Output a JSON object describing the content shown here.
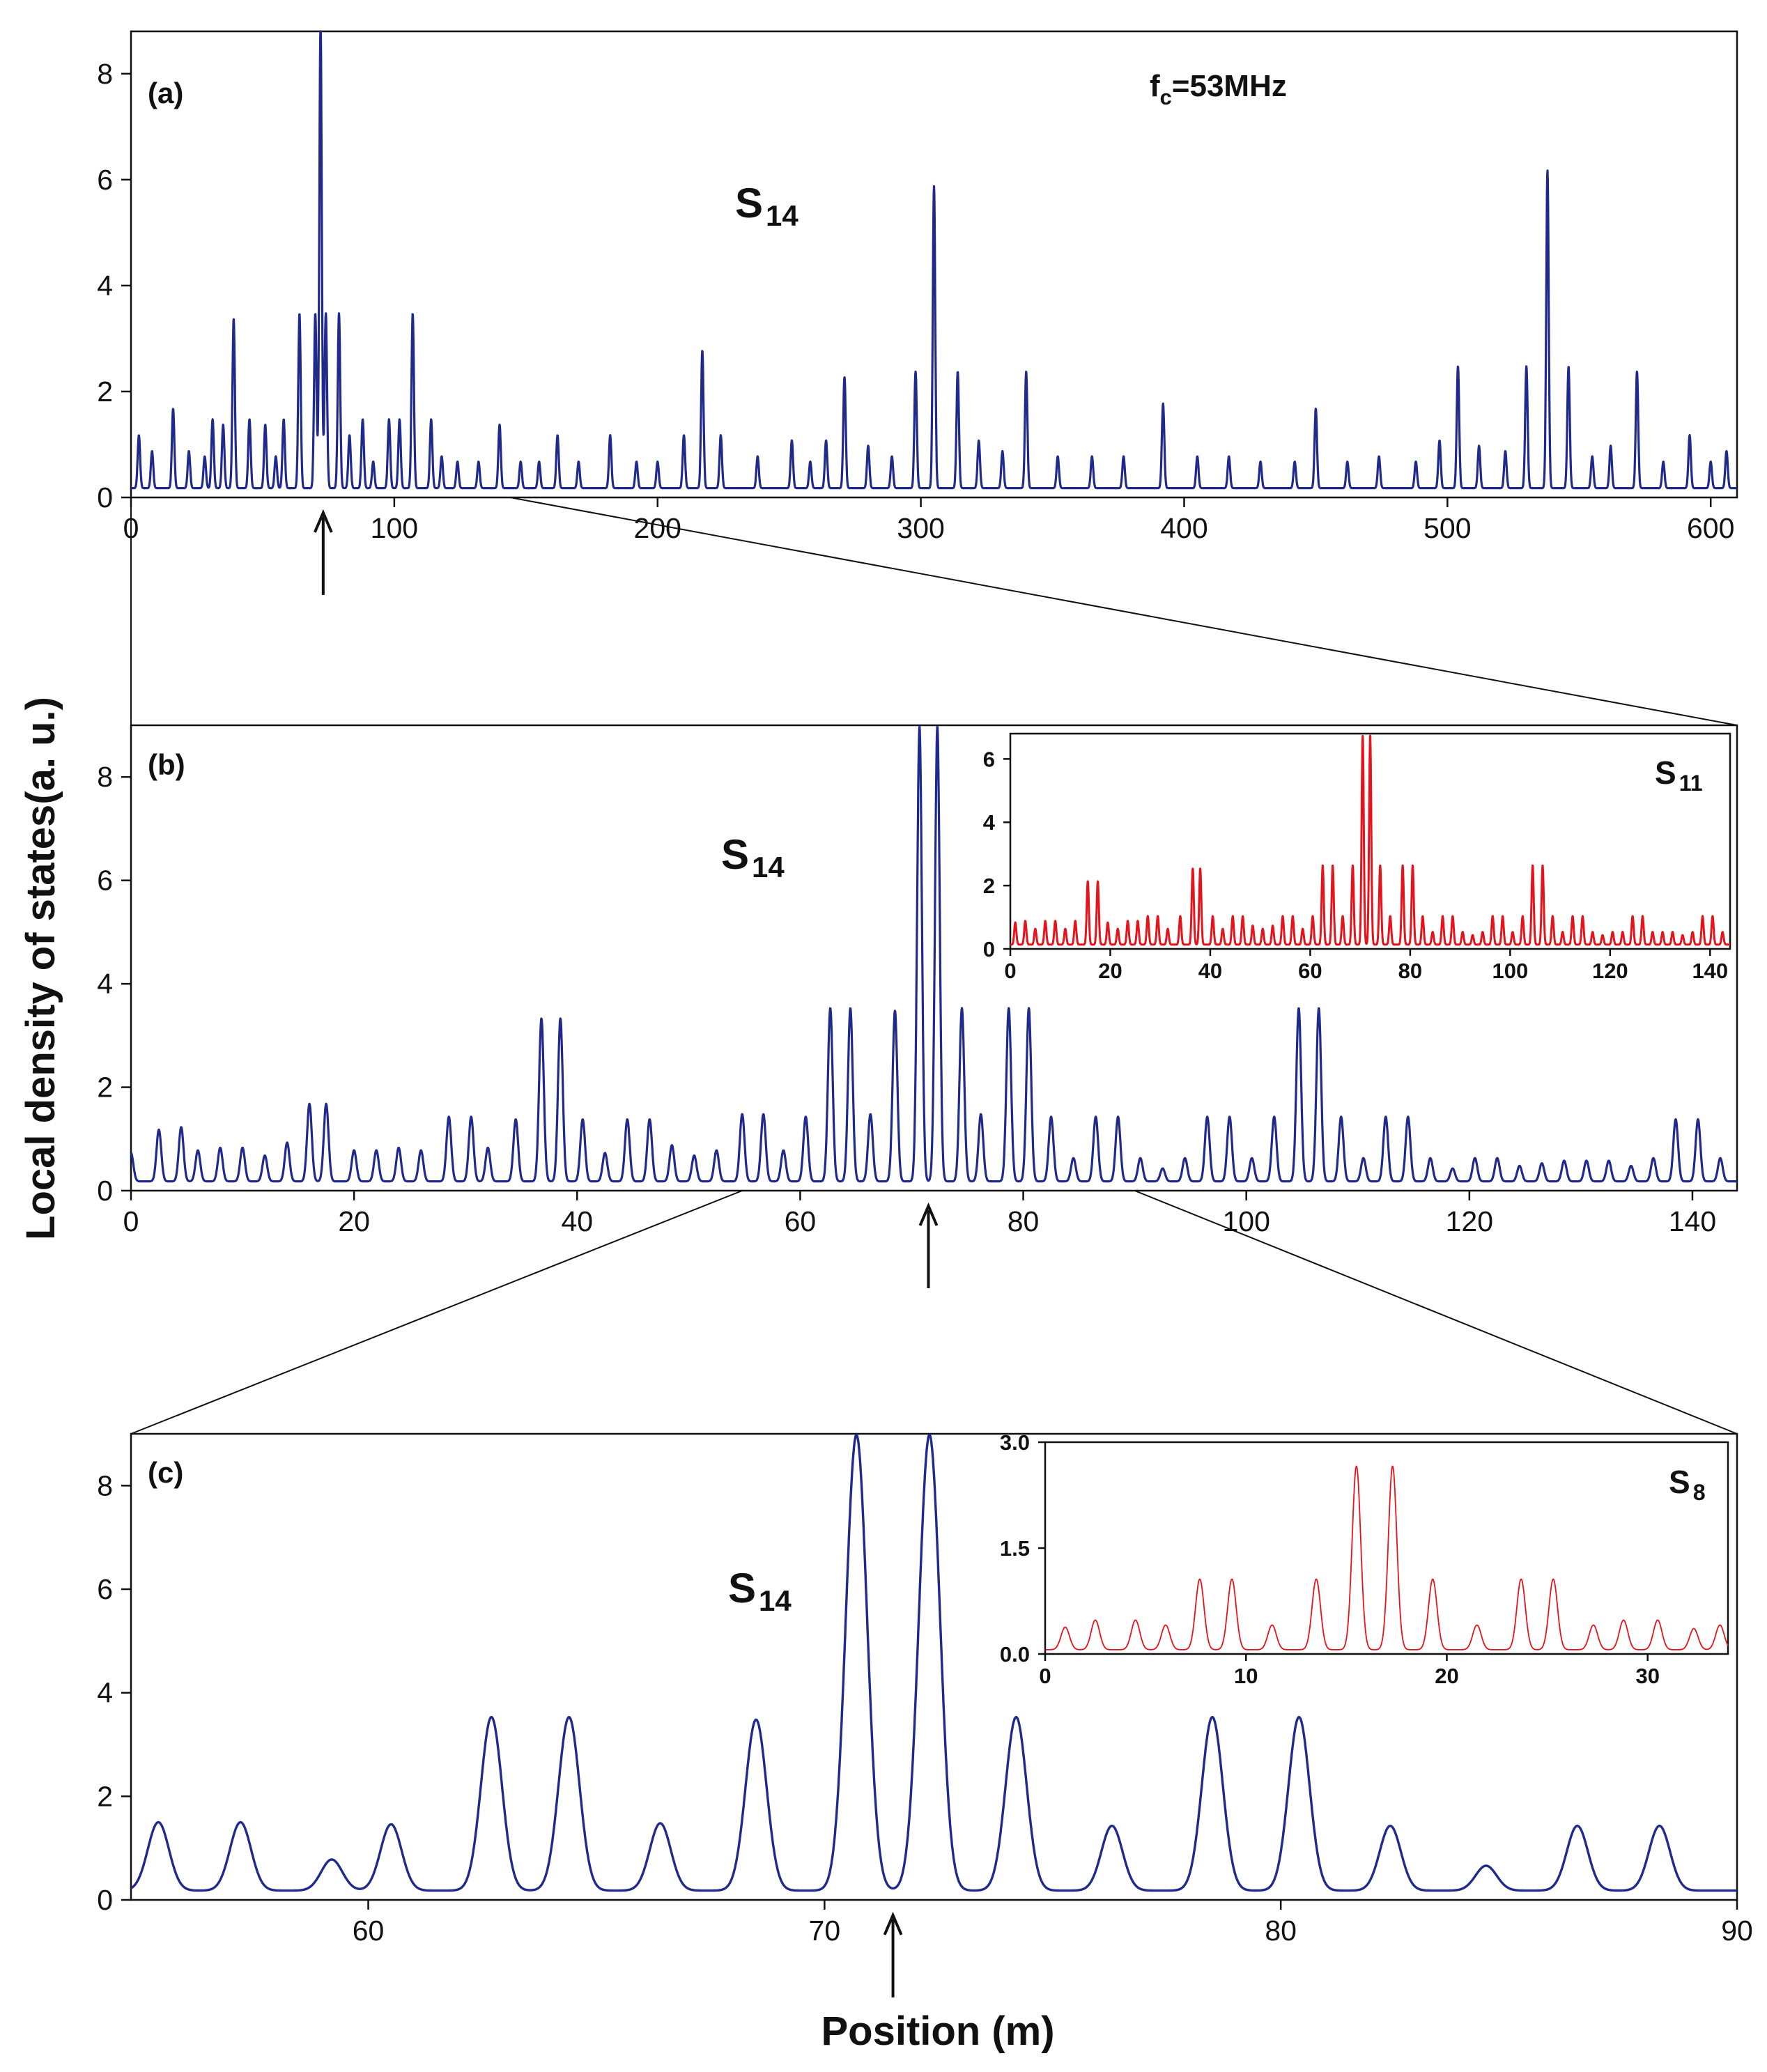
{
  "figure": {
    "y_axis_title": "Local density of states(a. u.)",
    "x_axis_title": "Position (m)",
    "annotation_fc": "f",
    "annotation_fc_sub": "c",
    "annotation_fc_value": "=53MHz"
  },
  "colors": {
    "main": "#1f2a8c",
    "inset": "#e5141c",
    "axis": "#111111"
  },
  "chart_data": [
    {
      "id": "a",
      "type": "line",
      "panel_label": "(a)",
      "series_label": "S",
      "series_sub": "14",
      "xlim": [
        0,
        610
      ],
      "ylim": [
        0,
        8.8
      ],
      "xticks": [
        0,
        100,
        200,
        300,
        400,
        500,
        600
      ],
      "yticks": [
        0,
        2,
        4,
        6,
        8
      ],
      "spacing": 1.2,
      "arrow_x": 73,
      "peaks": [
        [
          3,
          1.0
        ],
        [
          8,
          0.7
        ],
        [
          16,
          1.5
        ],
        [
          22,
          0.7
        ],
        [
          28,
          0.6
        ],
        [
          31,
          1.3
        ],
        [
          35,
          1.2
        ],
        [
          39,
          3.2
        ],
        [
          45,
          1.3
        ],
        [
          51,
          1.2
        ],
        [
          55,
          0.6
        ],
        [
          58,
          1.3
        ],
        [
          64,
          3.3
        ],
        [
          70,
          3.3
        ],
        [
          72,
          8.8
        ],
        [
          74,
          3.3
        ],
        [
          79,
          3.3
        ],
        [
          83,
          1.0
        ],
        [
          88,
          1.3
        ],
        [
          92,
          0.5
        ],
        [
          98,
          1.3
        ],
        [
          102,
          1.3
        ],
        [
          107,
          3.3
        ],
        [
          114,
          1.3
        ],
        [
          118,
          0.6
        ],
        [
          124,
          0.5
        ],
        [
          132,
          0.5
        ],
        [
          140,
          1.2
        ],
        [
          148,
          0.5
        ],
        [
          155,
          0.5
        ],
        [
          162,
          1.0
        ],
        [
          170,
          0.5
        ],
        [
          182,
          1.0
        ],
        [
          192,
          0.5
        ],
        [
          200,
          0.5
        ],
        [
          210,
          1.0
        ],
        [
          217,
          2.6
        ],
        [
          224,
          1.0
        ],
        [
          238,
          0.6
        ],
        [
          251,
          0.9
        ],
        [
          258,
          0.5
        ],
        [
          264,
          0.9
        ],
        [
          271,
          2.1
        ],
        [
          280,
          0.8
        ],
        [
          289,
          0.6
        ],
        [
          298,
          2.2
        ],
        [
          305,
          5.7
        ],
        [
          314,
          2.2
        ],
        [
          322,
          0.9
        ],
        [
          331,
          0.7
        ],
        [
          340,
          2.2
        ],
        [
          352,
          0.6
        ],
        [
          365,
          0.6
        ],
        [
          377,
          0.6
        ],
        [
          392,
          1.6
        ],
        [
          405,
          0.6
        ],
        [
          417,
          0.6
        ],
        [
          429,
          0.5
        ],
        [
          442,
          0.5
        ],
        [
          450,
          1.5
        ],
        [
          462,
          0.5
        ],
        [
          474,
          0.6
        ],
        [
          488,
          0.5
        ],
        [
          497,
          0.9
        ],
        [
          504,
          2.3
        ],
        [
          512,
          0.8
        ],
        [
          522,
          0.7
        ],
        [
          530,
          2.3
        ],
        [
          538,
          6.0
        ],
        [
          546,
          2.3
        ],
        [
          555,
          0.6
        ],
        [
          562,
          0.8
        ],
        [
          572,
          2.2
        ],
        [
          582,
          0.5
        ],
        [
          592,
          1.0
        ],
        [
          600,
          0.5
        ],
        [
          606,
          0.7
        ]
      ]
    },
    {
      "id": "b",
      "type": "line",
      "panel_label": "(b)",
      "series_label": "S",
      "series_sub": "14",
      "xlim": [
        0,
        144
      ],
      "ylim": [
        0,
        9.0
      ],
      "xticks": [
        0,
        20,
        40,
        60,
        80,
        100,
        120,
        140
      ],
      "yticks": [
        0,
        2,
        4,
        6,
        8
      ],
      "spacing": 0.55,
      "arrow_x": 71.5,
      "peaks": [
        [
          0,
          0.55
        ],
        [
          2.5,
          1.0
        ],
        [
          4.5,
          1.05
        ],
        [
          6,
          0.6
        ],
        [
          8,
          0.65
        ],
        [
          10,
          0.65
        ],
        [
          12,
          0.5
        ],
        [
          14,
          0.75
        ],
        [
          16,
          1.5
        ],
        [
          17.5,
          1.5
        ],
        [
          20,
          0.6
        ],
        [
          22,
          0.6
        ],
        [
          24,
          0.65
        ],
        [
          26,
          0.6
        ],
        [
          28.5,
          1.25
        ],
        [
          30.5,
          1.25
        ],
        [
          32,
          0.65
        ],
        [
          34.5,
          1.2
        ],
        [
          36.8,
          3.15
        ],
        [
          38.5,
          3.15
        ],
        [
          40.5,
          1.2
        ],
        [
          42.5,
          0.55
        ],
        [
          44.5,
          1.2
        ],
        [
          46.5,
          1.2
        ],
        [
          48.5,
          0.7
        ],
        [
          50.5,
          0.5
        ],
        [
          52.5,
          0.6
        ],
        [
          54.8,
          1.3
        ],
        [
          56.7,
          1.3
        ],
        [
          58.5,
          0.6
        ],
        [
          60.5,
          1.25
        ],
        [
          62.7,
          3.35
        ],
        [
          64.5,
          3.35
        ],
        [
          66.3,
          1.3
        ],
        [
          68.5,
          3.3
        ],
        [
          70.7,
          8.8
        ],
        [
          72.3,
          8.8
        ],
        [
          74.5,
          3.35
        ],
        [
          76.2,
          1.3
        ],
        [
          78.7,
          3.35
        ],
        [
          80.5,
          3.35
        ],
        [
          82.5,
          1.25
        ],
        [
          84.5,
          0.45
        ],
        [
          86.5,
          1.25
        ],
        [
          88.5,
          1.25
        ],
        [
          90.5,
          0.45
        ],
        [
          92.5,
          0.25
        ],
        [
          94.5,
          0.45
        ],
        [
          96.5,
          1.25
        ],
        [
          98.5,
          1.25
        ],
        [
          100.5,
          0.45
        ],
        [
          102.5,
          1.25
        ],
        [
          104.7,
          3.35
        ],
        [
          106.5,
          3.35
        ],
        [
          108.5,
          1.25
        ],
        [
          110.5,
          0.45
        ],
        [
          112.5,
          1.25
        ],
        [
          114.5,
          1.25
        ],
        [
          116.5,
          0.45
        ],
        [
          118.5,
          0.25
        ],
        [
          120.5,
          0.45
        ],
        [
          122.5,
          0.45
        ],
        [
          124.5,
          0.3
        ],
        [
          126.5,
          0.35
        ],
        [
          128.5,
          0.4
        ],
        [
          130.5,
          0.4
        ],
        [
          132.5,
          0.4
        ],
        [
          134.5,
          0.3
        ],
        [
          136.5,
          0.45
        ],
        [
          138.5,
          1.2
        ],
        [
          140.5,
          1.2
        ],
        [
          142.5,
          0.45
        ]
      ]
    },
    {
      "id": "b-inset",
      "type": "line",
      "series_label": "S",
      "series_sub": "11",
      "xlim": [
        0,
        144
      ],
      "ylim": [
        0,
        6.8
      ],
      "xticks": [
        0,
        20,
        40,
        60,
        80,
        100,
        120,
        140
      ],
      "yticks": [
        0,
        2,
        4,
        6
      ],
      "spacing": 0.55,
      "peaks": [
        [
          1,
          0.7
        ],
        [
          3,
          0.75
        ],
        [
          5,
          0.5
        ],
        [
          7,
          0.75
        ],
        [
          9,
          0.75
        ],
        [
          11,
          0.5
        ],
        [
          13,
          0.75
        ],
        [
          15.5,
          2.0
        ],
        [
          17.5,
          2.0
        ],
        [
          19.5,
          0.7
        ],
        [
          21.5,
          0.5
        ],
        [
          23.5,
          0.75
        ],
        [
          25.5,
          0.75
        ],
        [
          27.5,
          0.9
        ],
        [
          29.5,
          0.9
        ],
        [
          31.5,
          0.5
        ],
        [
          34,
          0.9
        ],
        [
          36.5,
          2.4
        ],
        [
          38,
          2.4
        ],
        [
          40.5,
          0.9
        ],
        [
          42.5,
          0.5
        ],
        [
          44.5,
          0.9
        ],
        [
          46.5,
          0.9
        ],
        [
          48.5,
          0.6
        ],
        [
          50.5,
          0.5
        ],
        [
          52.5,
          0.6
        ],
        [
          54.5,
          0.9
        ],
        [
          56.5,
          0.9
        ],
        [
          58.5,
          0.5
        ],
        [
          60.5,
          0.9
        ],
        [
          62.5,
          2.5
        ],
        [
          64.5,
          2.5
        ],
        [
          66.5,
          0.9
        ],
        [
          68.5,
          2.5
        ],
        [
          70.5,
          6.6
        ],
        [
          72,
          6.6
        ],
        [
          74,
          2.5
        ],
        [
          76,
          0.9
        ],
        [
          78.5,
          2.5
        ],
        [
          80.5,
          2.5
        ],
        [
          82.5,
          0.9
        ],
        [
          84.5,
          0.4
        ],
        [
          86.5,
          0.9
        ],
        [
          88.5,
          0.9
        ],
        [
          90.5,
          0.4
        ],
        [
          92.5,
          0.3
        ],
        [
          94.5,
          0.4
        ],
        [
          96.5,
          0.9
        ],
        [
          98.5,
          0.9
        ],
        [
          100.5,
          0.4
        ],
        [
          102.5,
          0.9
        ],
        [
          104.5,
          2.5
        ],
        [
          106.5,
          2.5
        ],
        [
          108.5,
          0.9
        ],
        [
          110.5,
          0.4
        ],
        [
          112.5,
          0.9
        ],
        [
          114.5,
          0.9
        ],
        [
          116.5,
          0.4
        ],
        [
          118.5,
          0.3
        ],
        [
          120.5,
          0.4
        ],
        [
          122.5,
          0.4
        ],
        [
          124.5,
          0.9
        ],
        [
          126.5,
          0.9
        ],
        [
          128.5,
          0.4
        ],
        [
          130.5,
          0.4
        ],
        [
          132.5,
          0.4
        ],
        [
          134.5,
          0.3
        ],
        [
          136.5,
          0.4
        ],
        [
          138.5,
          0.9
        ],
        [
          140.5,
          0.9
        ],
        [
          142.5,
          0.4
        ]
      ]
    },
    {
      "id": "c",
      "type": "line",
      "panel_label": "(c)",
      "series_label": "S",
      "series_sub": "14",
      "xlim": [
        54.8,
        90
      ],
      "ylim": [
        0,
        9.0
      ],
      "xticks": [
        60,
        70,
        80,
        90
      ],
      "yticks": [
        0,
        2,
        4,
        6,
        8
      ],
      "spacing": 0.6,
      "arrow_x": 71.5,
      "peaks": [
        [
          55.4,
          1.32
        ],
        [
          57.2,
          1.32
        ],
        [
          59.2,
          0.6
        ],
        [
          60.5,
          1.28
        ],
        [
          62.7,
          3.35
        ],
        [
          64.4,
          3.35
        ],
        [
          66.4,
          1.3
        ],
        [
          68.5,
          3.3
        ],
        [
          70.7,
          8.8
        ],
        [
          72.3,
          8.8
        ],
        [
          74.2,
          3.35
        ],
        [
          76.3,
          1.25
        ],
        [
          78.5,
          3.35
        ],
        [
          80.4,
          3.35
        ],
        [
          82.4,
          1.25
        ],
        [
          84.5,
          0.48
        ],
        [
          86.5,
          1.25
        ],
        [
          88.3,
          1.25
        ]
      ]
    },
    {
      "id": "c-inset",
      "type": "line",
      "series_label": "S",
      "series_sub": "8",
      "xlim": [
        0,
        34
      ],
      "ylim": [
        0,
        3.0
      ],
      "xticks": [
        0,
        10,
        20,
        30
      ],
      "yticks": [
        0.0,
        1.5,
        3.0
      ],
      "ytick_labels": [
        "0.0",
        "1.5",
        "3.0"
      ],
      "spacing": 0.55,
      "peaks": [
        [
          1,
          0.32
        ],
        [
          2.5,
          0.42
        ],
        [
          4.5,
          0.42
        ],
        [
          6,
          0.35
        ],
        [
          7.7,
          1.0
        ],
        [
          9.3,
          1.0
        ],
        [
          11.3,
          0.35
        ],
        [
          13.5,
          1.0
        ],
        [
          15.5,
          2.6
        ],
        [
          17.3,
          2.6
        ],
        [
          19.3,
          1.0
        ],
        [
          21.5,
          0.35
        ],
        [
          23.7,
          1.0
        ],
        [
          25.3,
          1.0
        ],
        [
          27.3,
          0.35
        ],
        [
          28.8,
          0.42
        ],
        [
          30.5,
          0.42
        ],
        [
          32.3,
          0.3
        ],
        [
          33.6,
          0.35
        ]
      ]
    }
  ]
}
